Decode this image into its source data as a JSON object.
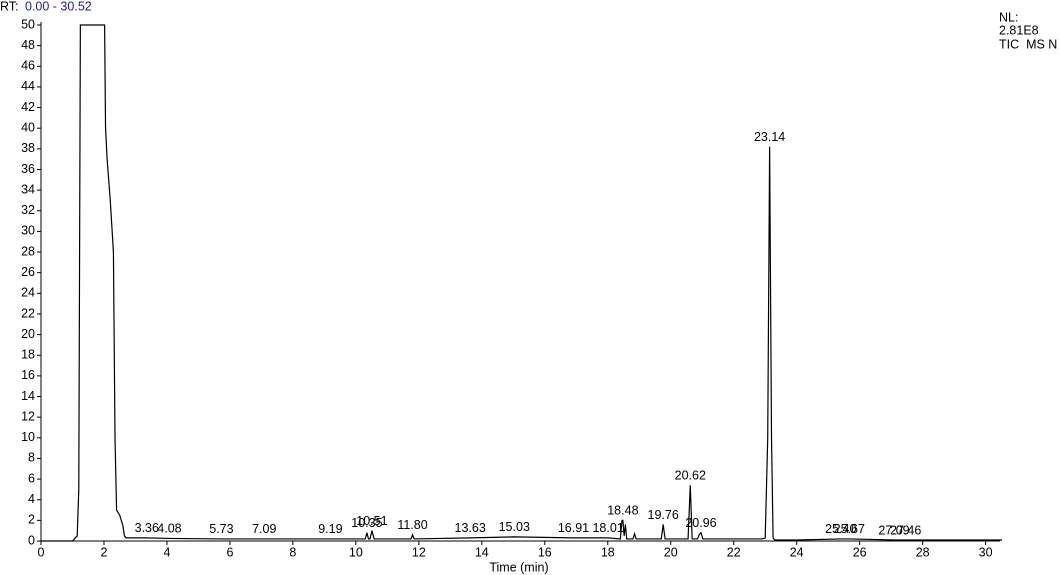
{
  "chart_data": {
    "type": "line",
    "rt_label": "RT:",
    "rt_range": "0.00 - 30.52",
    "nl_label": "NL:",
    "nl_value": "2.81E8",
    "scan_filter": "TIC  MS N",
    "x_label": "Time (min)",
    "xlim": [
      0,
      30.52
    ],
    "ylim": [
      0,
      50
    ],
    "xticks": [
      0,
      2,
      4,
      6,
      8,
      10,
      12,
      14,
      16,
      18,
      20,
      22,
      24,
      26,
      28,
      30
    ],
    "yticks": [
      0,
      2,
      4,
      6,
      8,
      10,
      12,
      14,
      16,
      18,
      20,
      22,
      24,
      26,
      28,
      30,
      32,
      34,
      36,
      38,
      40,
      42,
      44,
      46,
      48,
      50
    ],
    "series": [
      {
        "color": "#000000",
        "x": [
          0,
          1.0,
          1.15,
          1.2,
          1.25,
          2.02,
          2.05,
          2.1,
          2.2,
          2.3,
          2.35,
          2.4,
          2.5,
          2.6,
          2.65,
          2.7,
          3.36,
          4.08,
          5.73,
          7.09,
          9.19,
          10.3,
          10.35,
          10.4,
          10.45,
          10.51,
          10.58,
          11.75,
          11.8,
          11.85,
          13.63,
          15.03,
          16.91,
          18.01,
          18.4,
          18.45,
          18.48,
          18.52,
          18.56,
          18.6,
          18.8,
          18.85,
          18.9,
          19.7,
          19.76,
          19.82,
          20.55,
          20.62,
          20.68,
          20.85,
          20.9,
          20.96,
          21.02,
          22.9,
          23.0,
          23.08,
          23.14,
          23.2,
          23.25,
          23.3,
          24.0,
          25.4,
          25.67,
          27.09,
          27.46,
          30.52
        ],
        "values": [
          0,
          0,
          0.5,
          5,
          50,
          50,
          40,
          37,
          33,
          28,
          10,
          3,
          2.5,
          1.5,
          0.5,
          0.3,
          0.3,
          0.25,
          0.2,
          0.2,
          0.2,
          0.2,
          0.8,
          0.2,
          0.2,
          1.0,
          0.2,
          0.2,
          0.6,
          0.2,
          0.3,
          0.4,
          0.3,
          0.3,
          0.2,
          2.0,
          2.0,
          0.5,
          1.6,
          0.2,
          0.2,
          0.7,
          0.2,
          0.2,
          1.6,
          0.2,
          0.2,
          5.4,
          0.2,
          0.2,
          0.6,
          0.8,
          0.2,
          0.2,
          0.3,
          10,
          38.2,
          10,
          0.3,
          0.1,
          0.1,
          0.2,
          0.2,
          0.1,
          0.1,
          0.1
        ]
      }
    ],
    "peaks": [
      {
        "label": "3.36",
        "x": 3.36,
        "y": 0.3
      },
      {
        "label": "4.08",
        "x": 4.08,
        "y": 0.25
      },
      {
        "label": "5.73",
        "x": 5.73,
        "y": 0.2
      },
      {
        "label": "7.09",
        "x": 7.09,
        "y": 0.2
      },
      {
        "label": "9.19",
        "x": 9.19,
        "y": 0.2
      },
      {
        "label": "10.35",
        "x": 10.35,
        "y": 0.8
      },
      {
        "label": "10.51",
        "x": 10.51,
        "y": 1.0
      },
      {
        "label": "11.80",
        "x": 11.8,
        "y": 0.6
      },
      {
        "label": "13.63",
        "x": 13.63,
        "y": 0.3
      },
      {
        "label": "15.03",
        "x": 15.03,
        "y": 0.4
      },
      {
        "label": "16.91",
        "x": 16.91,
        "y": 0.3
      },
      {
        "label": "18.01",
        "x": 18.01,
        "y": 0.3
      },
      {
        "label": "18.48",
        "x": 18.48,
        "y": 2.0
      },
      {
        "label": "19.76",
        "x": 19.76,
        "y": 1.6
      },
      {
        "label": "20.62",
        "x": 20.62,
        "y": 5.4
      },
      {
        "label": "20.96",
        "x": 20.96,
        "y": 0.8
      },
      {
        "label": "23.14",
        "x": 23.14,
        "y": 38.2
      },
      {
        "label": "25.40",
        "x": 25.4,
        "y": 0.2
      },
      {
        "label": "25.67",
        "x": 25.67,
        "y": 0.2
      },
      {
        "label": "27.09",
        "x": 27.09,
        "y": 0.1
      },
      {
        "label": "27.46",
        "x": 27.46,
        "y": 0.1
      }
    ]
  }
}
